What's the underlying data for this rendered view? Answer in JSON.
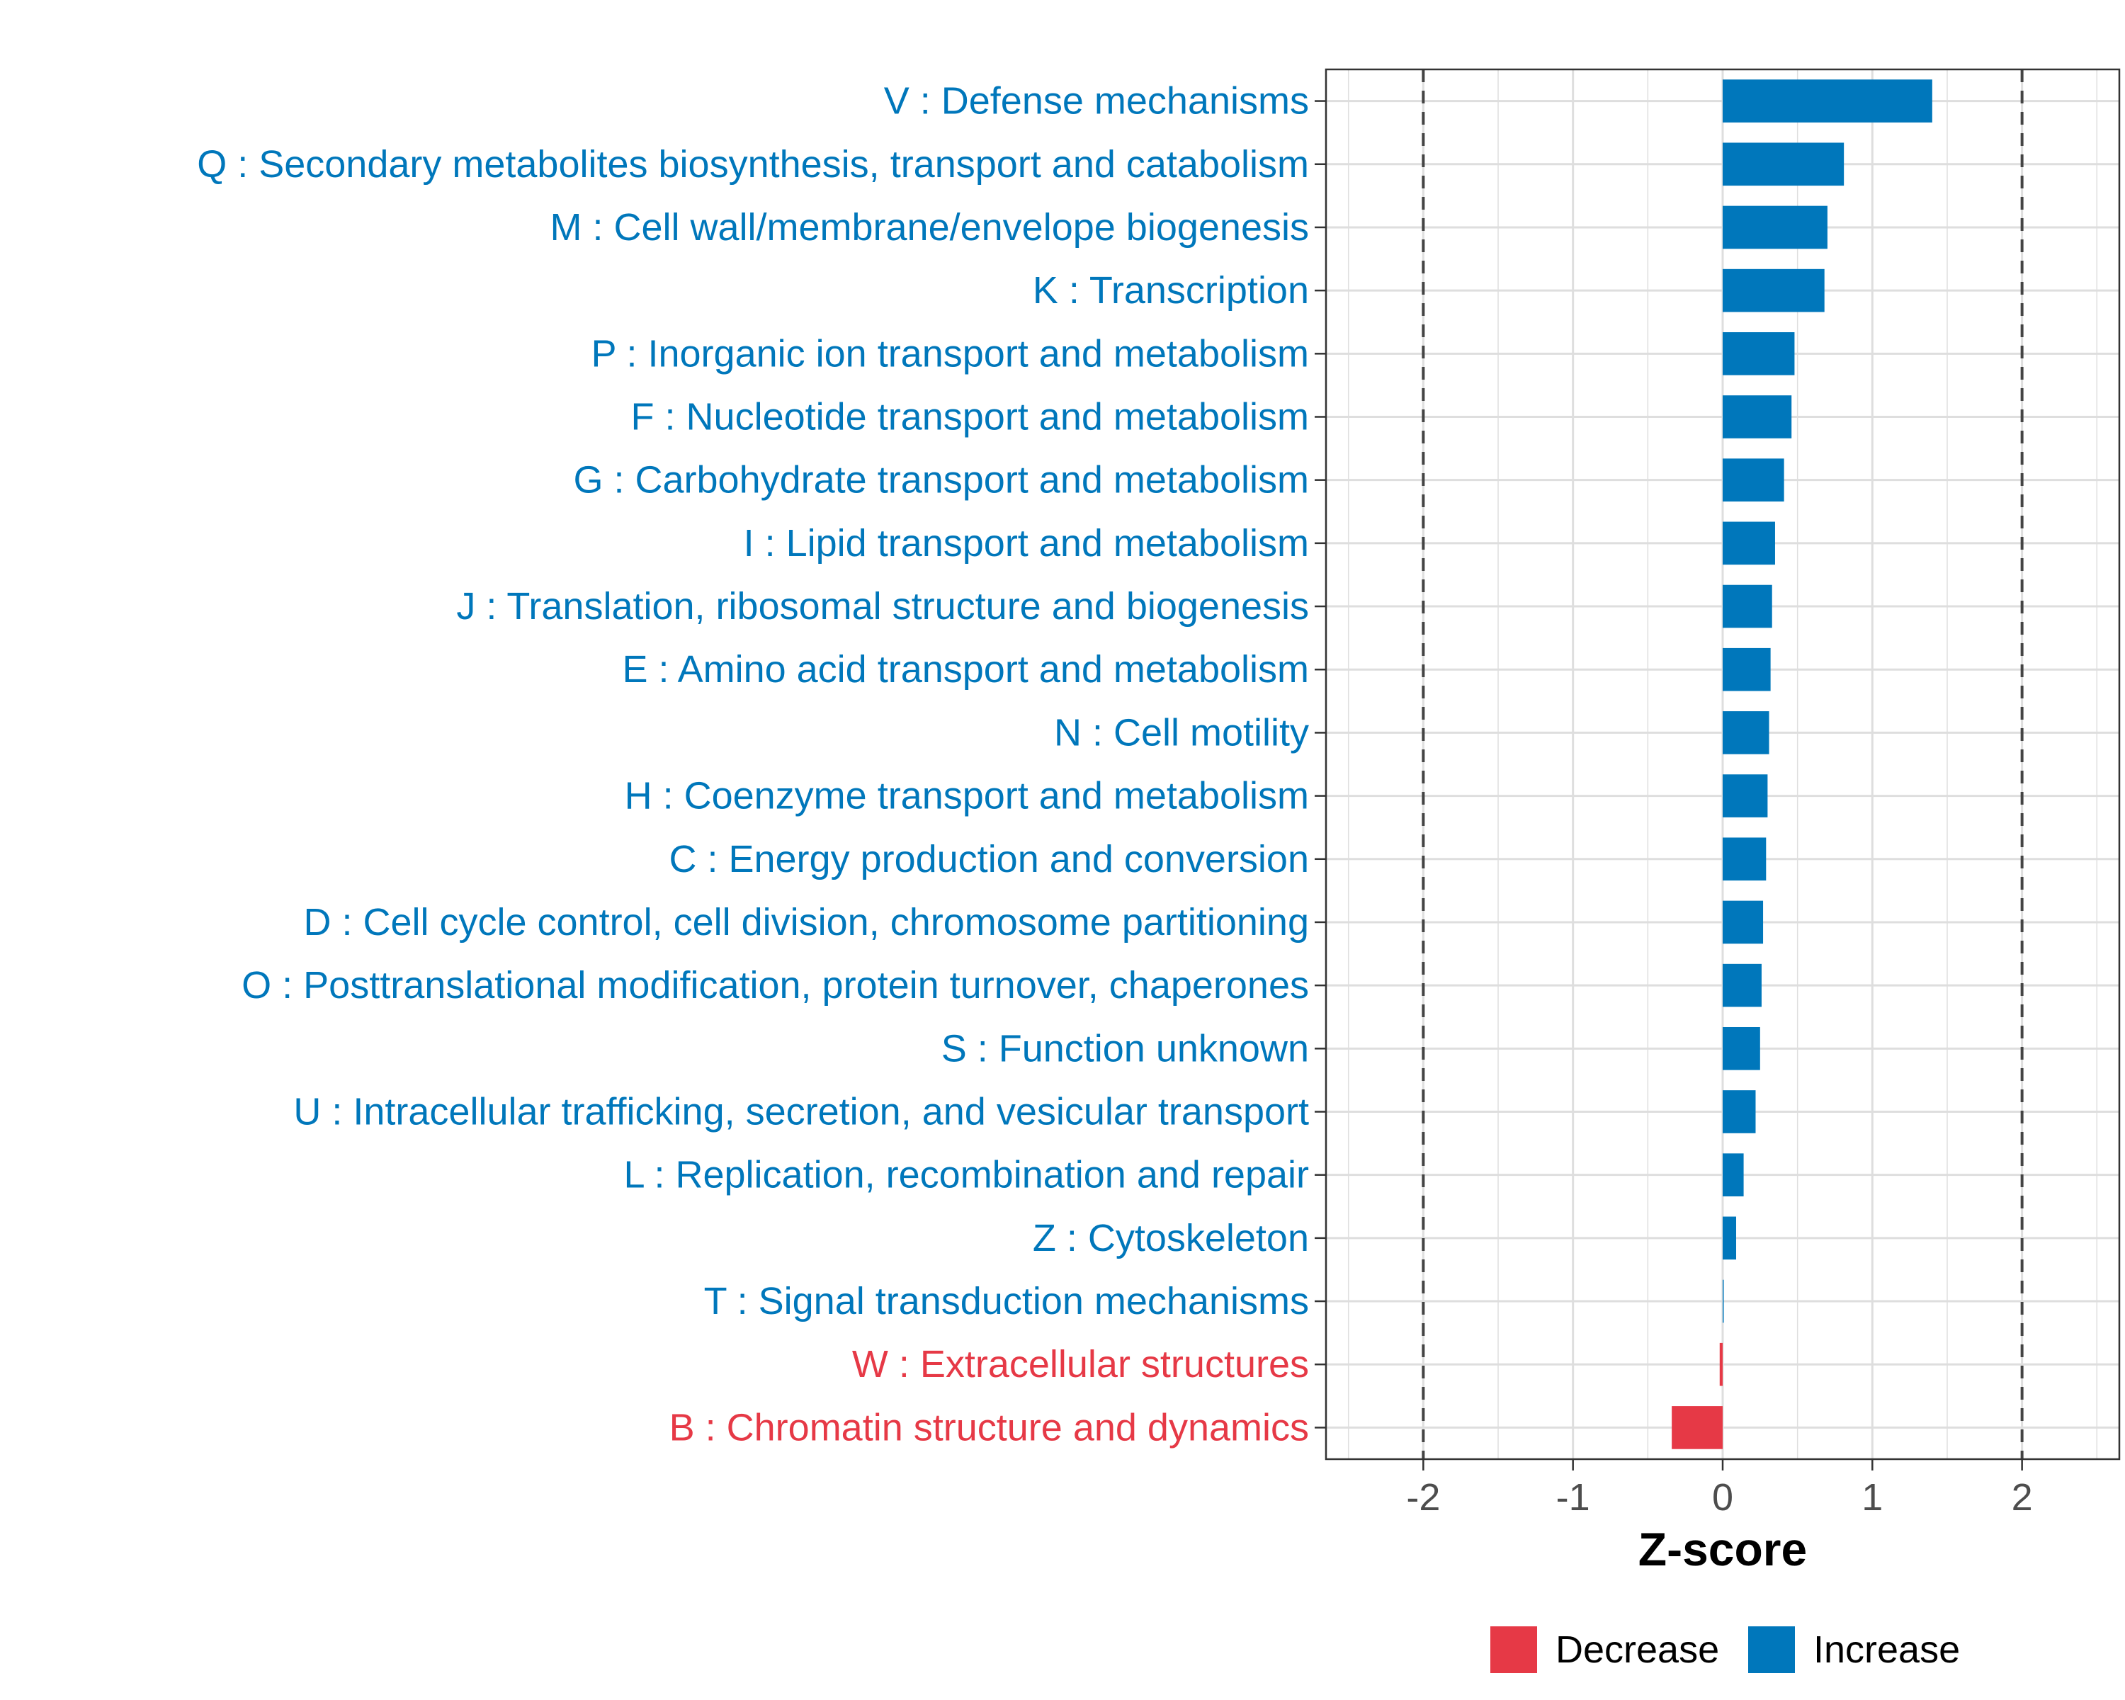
{
  "chart_data": {
    "type": "bar",
    "orientation": "horizontal",
    "categories": [
      "V : Defense mechanisms",
      "Q : Secondary metabolites biosynthesis, transport and catabolism",
      "M : Cell wall/membrane/envelope biogenesis",
      "K : Transcription",
      "P : Inorganic ion transport and metabolism",
      "F : Nucleotide transport and metabolism",
      "G : Carbohydrate transport and metabolism",
      "I : Lipid transport and metabolism",
      "J : Translation, ribosomal structure and biogenesis",
      "E : Amino acid transport and metabolism",
      "N : Cell motility",
      "H : Coenzyme transport and metabolism",
      "C : Energy production and conversion",
      "D : Cell cycle control, cell division, chromosome partitioning",
      "O : Posttranslational modification, protein turnover, chaperones",
      "S : Function unknown",
      "U : Intracellular trafficking, secretion, and vesicular transport",
      "L : Replication, recombination and repair",
      "Z : Cytoskeleton",
      "T : Signal transduction mechanisms",
      "W : Extracellular structures",
      "B : Chromatin structure and dynamics"
    ],
    "values": [
      1.4,
      0.81,
      0.7,
      0.68,
      0.48,
      0.46,
      0.41,
      0.35,
      0.33,
      0.32,
      0.31,
      0.3,
      0.29,
      0.27,
      0.26,
      0.25,
      0.22,
      0.14,
      0.09,
      0.005,
      -0.02,
      -0.34
    ],
    "groups": [
      "Increase",
      "Increase",
      "Increase",
      "Increase",
      "Increase",
      "Increase",
      "Increase",
      "Increase",
      "Increase",
      "Increase",
      "Increase",
      "Increase",
      "Increase",
      "Increase",
      "Increase",
      "Increase",
      "Increase",
      "Increase",
      "Increase",
      "Increase",
      "Decrease",
      "Decrease"
    ],
    "xlabel": "Z-score",
    "ylabel": "",
    "xlim": [
      -2.65,
      2.65
    ],
    "xticks": [
      -2,
      -1,
      0,
      1,
      2
    ],
    "xtick_labels": [
      "-2",
      "-1",
      "0",
      "1",
      "2"
    ],
    "reference_lines": [
      -2,
      2
    ],
    "grid": true,
    "legend": {
      "position": "bottom",
      "entries": [
        {
          "label": "Decrease",
          "color": "#e63946"
        },
        {
          "label": "Increase",
          "color": "#0077bb"
        }
      ]
    },
    "colors": {
      "Decrease": "#e63946",
      "Increase": "#0077bb"
    }
  }
}
